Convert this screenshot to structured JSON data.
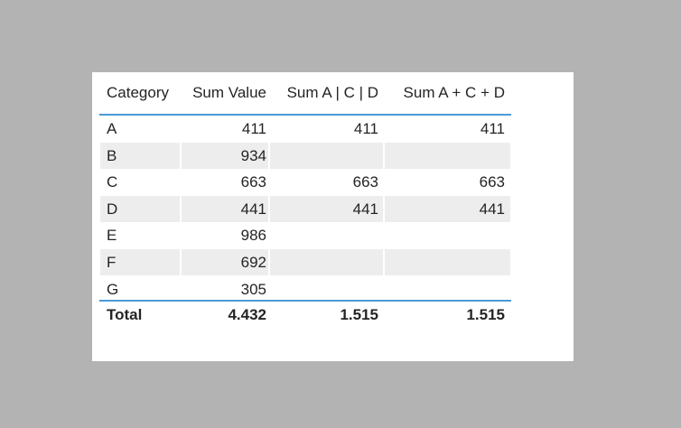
{
  "table": {
    "headers": [
      "Category",
      "Sum Value",
      "Sum A | C | D",
      "Sum A + C + D"
    ],
    "rows": [
      [
        "A",
        411,
        411,
        411
      ],
      [
        "B",
        934,
        null,
        null
      ],
      [
        "C",
        663,
        663,
        663
      ],
      [
        "D",
        441,
        441,
        441
      ],
      [
        "E",
        986,
        null,
        null
      ],
      [
        "F",
        692,
        null,
        null
      ],
      [
        "G",
        305,
        null,
        null
      ]
    ],
    "total": [
      "Total",
      "4.432",
      "1.515",
      "1.515"
    ]
  }
}
